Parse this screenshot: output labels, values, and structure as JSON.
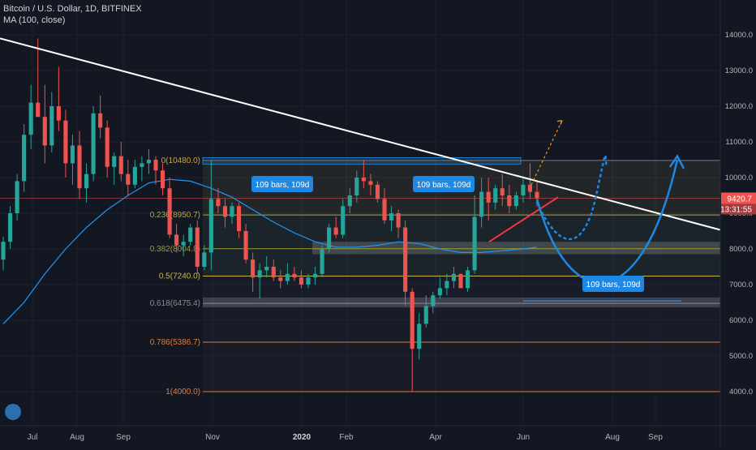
{
  "legend": {
    "symbol": "Bitcoin / U.S. Dollar, 1D, BITFINEX",
    "indicator": "MA (100, close)"
  },
  "colors": {
    "background": "#131722",
    "up": "#26a69a",
    "down": "#ef5350",
    "ma": "#2196f3",
    "trendline": "#ffffff",
    "fib": "#b08a28",
    "price_tag": "#ef5350",
    "annotation": "#1e88e5"
  },
  "chart_data": {
    "type": "candlestick",
    "x_ticks": [
      "Jul",
      "Aug",
      "Sep",
      "Nov",
      "2020",
      "Feb",
      "Apr",
      "Jun",
      "Aug",
      "Sep"
    ],
    "y_ticks": [
      "14000.0",
      "13000.0",
      "12000.0",
      "11000.0",
      "10000.0",
      "9000.0",
      "8000.0",
      "7000.0",
      "6000.0",
      "5000.0",
      "4000.0"
    ],
    "ylim": [
      3000,
      14750
    ],
    "last_price": 9420.7,
    "last_price_label": "9420.7",
    "countdown": "13:31:55",
    "fib_levels": [
      {
        "label": "0(10480.0)",
        "value": 10480
      },
      {
        "label": "0.236(8950.7)",
        "value": 8950.7
      },
      {
        "label": "0.382(8004.8)",
        "value": 8004.8
      },
      {
        "label": "0.5(7240.0)",
        "value": 7240
      },
      {
        "label": "0.618(6475.4)",
        "value": 6475.4
      },
      {
        "label": "0.786(5386.7)",
        "value": 5386.7
      },
      {
        "label": "1(4000.0)",
        "value": 4000
      }
    ],
    "annotations": [
      "109 bars, 109d",
      "109 bars, 109d",
      "109 bars, 109d"
    ],
    "ohlc": [
      [
        7700,
        8350,
        7400,
        8200
      ],
      [
        8200,
        9200,
        8000,
        9000
      ],
      [
        9000,
        10100,
        8800,
        9900
      ],
      [
        9900,
        11500,
        9600,
        11200
      ],
      [
        11200,
        12600,
        10800,
        12100
      ],
      [
        12100,
        13900,
        11800,
        11700
      ],
      [
        11700,
        12600,
        10400,
        10900
      ],
      [
        10900,
        12400,
        10700,
        12000
      ],
      [
        12000,
        13100,
        11300,
        11600
      ],
      [
        11600,
        11900,
        10000,
        10400
      ],
      [
        10400,
        11200,
        9800,
        10900
      ],
      [
        10900,
        11300,
        9400,
        9700
      ],
      [
        9700,
        10400,
        9300,
        10100
      ],
      [
        10100,
        12000,
        9900,
        11800
      ],
      [
        11800,
        12300,
        11100,
        11400
      ],
      [
        11400,
        11600,
        10000,
        10300
      ],
      [
        10300,
        10700,
        9800,
        10600
      ],
      [
        10600,
        11000,
        9900,
        10100
      ],
      [
        10100,
        10500,
        9500,
        9800
      ],
      [
        9800,
        10500,
        9700,
        10300
      ],
      [
        10300,
        10600,
        9900,
        10400
      ],
      [
        10400,
        10800,
        10100,
        10500
      ],
      [
        10500,
        10600,
        9800,
        10200
      ],
      [
        10200,
        10400,
        9500,
        9700
      ],
      [
        9700,
        10000,
        8300,
        8400
      ],
      [
        8400,
        8700,
        7900,
        8100
      ],
      [
        8100,
        8400,
        7800,
        8200
      ],
      [
        8200,
        8700,
        8100,
        8600
      ],
      [
        8600,
        8800,
        7300,
        7500
      ],
      [
        7500,
        8100,
        7400,
        7900
      ],
      [
        7900,
        10500,
        7400,
        9400
      ],
      [
        9400,
        9700,
        9000,
        9200
      ],
      [
        9200,
        9400,
        8600,
        8900
      ],
      [
        8900,
        9300,
        8700,
        9200
      ],
      [
        9200,
        9300,
        8300,
        8500
      ],
      [
        8500,
        8700,
        7600,
        7700
      ],
      [
        7700,
        7900,
        6800,
        7200
      ],
      [
        7200,
        7600,
        6600,
        7400
      ],
      [
        7400,
        7800,
        7200,
        7500
      ],
      [
        7500,
        7700,
        7100,
        7200
      ],
      [
        7200,
        7400,
        6900,
        7100
      ],
      [
        7100,
        7600,
        7000,
        7300
      ],
      [
        7300,
        7500,
        7100,
        7200
      ],
      [
        7200,
        7400,
        6900,
        7000
      ],
      [
        7000,
        7300,
        6900,
        7200
      ],
      [
        7200,
        7500,
        7000,
        7300
      ],
      [
        7300,
        8100,
        7200,
        8000
      ],
      [
        8000,
        8700,
        7900,
        8600
      ],
      [
        8600,
        8900,
        8300,
        8400
      ],
      [
        8400,
        9400,
        8300,
        9200
      ],
      [
        9200,
        9700,
        9000,
        9500
      ],
      [
        9500,
        10200,
        9300,
        10000
      ],
      [
        10000,
        10500,
        9700,
        9900
      ],
      [
        9900,
        10100,
        9500,
        9800
      ],
      [
        9800,
        9900,
        9300,
        9400
      ],
      [
        9400,
        9700,
        8700,
        8800
      ],
      [
        8800,
        9200,
        8500,
        9000
      ],
      [
        9000,
        9100,
        8300,
        8600
      ],
      [
        8600,
        8800,
        6400,
        6800
      ],
      [
        6800,
        6900,
        4000,
        5200
      ],
      [
        5200,
        6200,
        4900,
        5900
      ],
      [
        5900,
        6700,
        5800,
        6400
      ],
      [
        6400,
        6800,
        6200,
        6700
      ],
      [
        6700,
        7200,
        6600,
        6900
      ],
      [
        6900,
        7300,
        6700,
        7100
      ],
      [
        7100,
        7500,
        6900,
        7300
      ],
      [
        7300,
        7200,
        6900,
        6900
      ],
      [
        6900,
        7500,
        6800,
        7400
      ],
      [
        7400,
        9500,
        7300,
        8900
      ],
      [
        8900,
        10000,
        8600,
        9600
      ],
      [
        9600,
        10000,
        8800,
        9300
      ],
      [
        9300,
        9800,
        9100,
        9700
      ],
      [
        9700,
        10100,
        9200,
        9500
      ],
      [
        9500,
        9800,
        9000,
        9200
      ],
      [
        9200,
        9600,
        9100,
        9500
      ],
      [
        9500,
        10000,
        9300,
        9800
      ],
      [
        9800,
        10400,
        9400,
        9600
      ],
      [
        9600,
        9900,
        9200,
        9420.7
      ]
    ],
    "ma": [
      [
        0,
        5900
      ],
      [
        3,
        6500
      ],
      [
        6,
        7300
      ],
      [
        9,
        8000
      ],
      [
        12,
        8600
      ],
      [
        15,
        9100
      ],
      [
        18,
        9500
      ],
      [
        21,
        9850
      ],
      [
        24,
        9950
      ],
      [
        27,
        9900
      ],
      [
        30,
        9700
      ],
      [
        33,
        9450
      ],
      [
        36,
        9100
      ],
      [
        39,
        8750
      ],
      [
        42,
        8450
      ],
      [
        45,
        8200
      ],
      [
        48,
        8050
      ],
      [
        51,
        8050
      ],
      [
        54,
        8100
      ],
      [
        57,
        8200
      ],
      [
        60,
        8150
      ],
      [
        63,
        8000
      ],
      [
        66,
        7900
      ],
      [
        69,
        7900
      ],
      [
        72,
        7950
      ],
      [
        75,
        8000
      ],
      [
        77,
        8050
      ]
    ],
    "trendline": [
      [
        13900,
        0
      ],
      [
        8700,
        77
      ]
    ]
  }
}
